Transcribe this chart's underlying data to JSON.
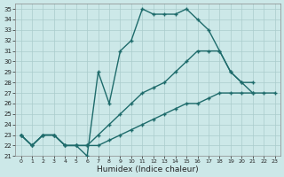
{
  "xlabel": "Humidex (Indice chaleur)",
  "bg_color": "#cce8e8",
  "line_color": "#1e6b6b",
  "grid_color": "#aacccc",
  "xlim": [
    -0.5,
    23.5
  ],
  "ylim": [
    21,
    35.5
  ],
  "xticks": [
    0,
    1,
    2,
    3,
    4,
    5,
    6,
    7,
    8,
    9,
    10,
    11,
    12,
    13,
    14,
    15,
    16,
    17,
    18,
    19,
    20,
    21,
    22,
    23
  ],
  "yticks": [
    21,
    22,
    23,
    24,
    25,
    26,
    27,
    28,
    29,
    30,
    31,
    32,
    33,
    34,
    35
  ],
  "line1_x": [
    0,
    1,
    2,
    3,
    4,
    5,
    6,
    7,
    8,
    9,
    10,
    11,
    12,
    13,
    14,
    15,
    16,
    17,
    18,
    19,
    20,
    21
  ],
  "line1_y": [
    23,
    22,
    23,
    23,
    22,
    22,
    21,
    29,
    26,
    31,
    32,
    35,
    34.5,
    34.5,
    34.5,
    35,
    34,
    33,
    31,
    29,
    28,
    28
  ],
  "line2_x": [
    0,
    1,
    2,
    3,
    4,
    5,
    6,
    7,
    8,
    9,
    10,
    11,
    12,
    13,
    14,
    15,
    16,
    17,
    18,
    19,
    20,
    21
  ],
  "line2_y": [
    23,
    22,
    23,
    23,
    22,
    22,
    22,
    23,
    24,
    25,
    26,
    27,
    27.5,
    28,
    29,
    30,
    31,
    31,
    31,
    29,
    28,
    27
  ],
  "line3_x": [
    0,
    1,
    2,
    3,
    4,
    5,
    6,
    7,
    8,
    9,
    10,
    11,
    12,
    13,
    14,
    15,
    16,
    17,
    18,
    19,
    20,
    21,
    22,
    23
  ],
  "line3_y": [
    23,
    22,
    23,
    23,
    22,
    22,
    22,
    22,
    22.5,
    23,
    23.5,
    24,
    24.5,
    25,
    25.5,
    26,
    26,
    26.5,
    27,
    27,
    27,
    27,
    27,
    27
  ]
}
